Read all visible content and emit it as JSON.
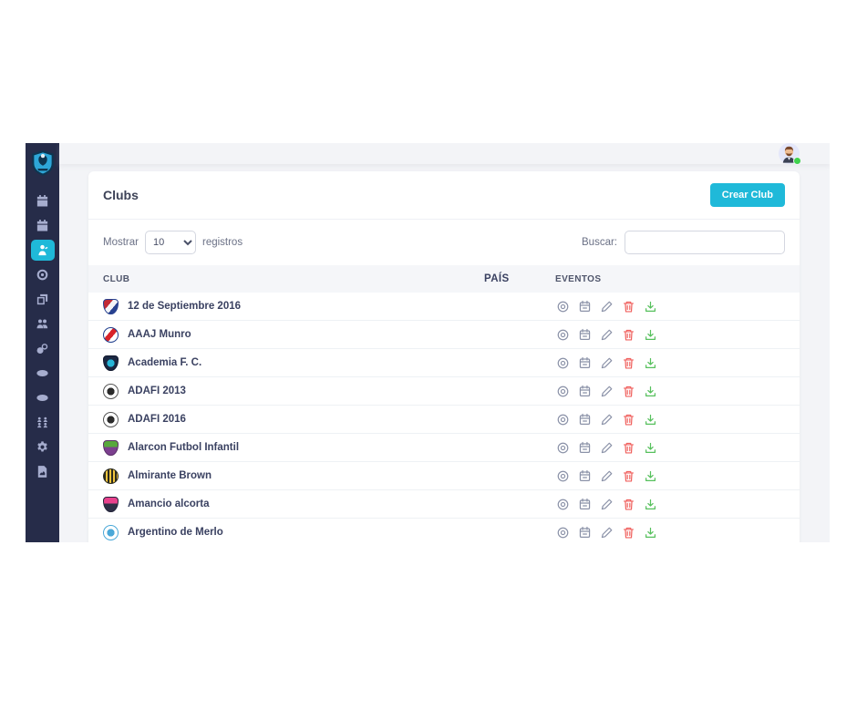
{
  "colors": {
    "accent": "#1fb9d9",
    "sidebar": "#262c49",
    "background": "#f3f4f7",
    "delete_icon": "#f0625f",
    "download_icon": "#56c05c",
    "online_dot": "#3fd24d"
  },
  "sidebar": {
    "items": [
      {
        "name": "schedule",
        "icon": "calendar",
        "active": false
      },
      {
        "name": "calendar",
        "icon": "calendar",
        "active": false
      },
      {
        "name": "clubs",
        "icon": "referee",
        "active": true
      },
      {
        "name": "balls",
        "icon": "coin",
        "active": false
      },
      {
        "name": "documents",
        "icon": "copy",
        "active": false
      },
      {
        "name": "users",
        "icon": "users",
        "active": false
      },
      {
        "name": "teams",
        "icon": "balls",
        "active": false
      },
      {
        "name": "fields",
        "icon": "disc",
        "active": false
      },
      {
        "name": "courts",
        "icon": "disc",
        "active": false
      },
      {
        "name": "groups",
        "icon": "team",
        "active": false
      },
      {
        "name": "settings",
        "icon": "gear",
        "active": false
      },
      {
        "name": "reports",
        "icon": "file-image",
        "active": false
      }
    ]
  },
  "card": {
    "title": "Clubs",
    "create_button": "Crear Club"
  },
  "controls": {
    "show_label": "Mostrar",
    "page_length": "10",
    "records_label": "registros",
    "search_label": "Buscar:",
    "search_value": ""
  },
  "table": {
    "headers": [
      "CLUB",
      "PAÍS",
      "EVENTOS"
    ],
    "row_actions": [
      "view",
      "calendar",
      "edit",
      "delete",
      "download"
    ],
    "rows": [
      {
        "club": "12 de Septiembre 2016",
        "pais": "",
        "crest": {
          "shape": "shield",
          "pattern": "diag3",
          "colors": [
            "#c22a35",
            "#f2f4f8",
            "#27418f"
          ],
          "border": "#27418f"
        }
      },
      {
        "club": "AAAJ Munro",
        "pais": "",
        "crest": {
          "shape": "circle",
          "pattern": "diag3",
          "colors": [
            "#ffffff",
            "#d8232a",
            "#ffffff"
          ],
          "border": "#1f3e8d"
        }
      },
      {
        "club": "Academia F. C.",
        "pais": "",
        "crest": {
          "shape": "shield",
          "pattern": "dot",
          "colors": [
            "#1b2742",
            "#27b6d8"
          ],
          "border": "#10182e"
        }
      },
      {
        "club": "ADAFI 2013",
        "pais": "",
        "crest": {
          "shape": "circle",
          "pattern": "dot",
          "colors": [
            "#ffffff",
            "#2b2b2b"
          ],
          "border": "#555555"
        }
      },
      {
        "club": "ADAFI 2016",
        "pais": "",
        "crest": {
          "shape": "circle",
          "pattern": "dot",
          "colors": [
            "#ffffff",
            "#2b2b2b"
          ],
          "border": "#555555"
        }
      },
      {
        "club": "Alarcon Futbol Infantil",
        "pais": "",
        "crest": {
          "shape": "shield",
          "pattern": "gradv",
          "colors": [
            "#58a83c",
            "#7c3f8f"
          ],
          "border": "#5a2e68"
        }
      },
      {
        "club": "Almirante Brown",
        "pais": "",
        "crest": {
          "shape": "circle",
          "pattern": "stripes",
          "colors": [
            "#2b2b1e",
            "#f2c53d"
          ],
          "border": "#2b2b1e"
        }
      },
      {
        "club": "Amancio alcorta",
        "pais": "",
        "crest": {
          "shape": "shield",
          "pattern": "gradv",
          "colors": [
            "#e8418c",
            "#2e3046"
          ],
          "border": "#23243a"
        }
      },
      {
        "club": "Argentino de Merlo",
        "pais": "",
        "crest": {
          "shape": "circle",
          "pattern": "dot",
          "colors": [
            "#ffffff",
            "#4aa8d8"
          ],
          "border": "#4aa8d8"
        }
      }
    ]
  }
}
